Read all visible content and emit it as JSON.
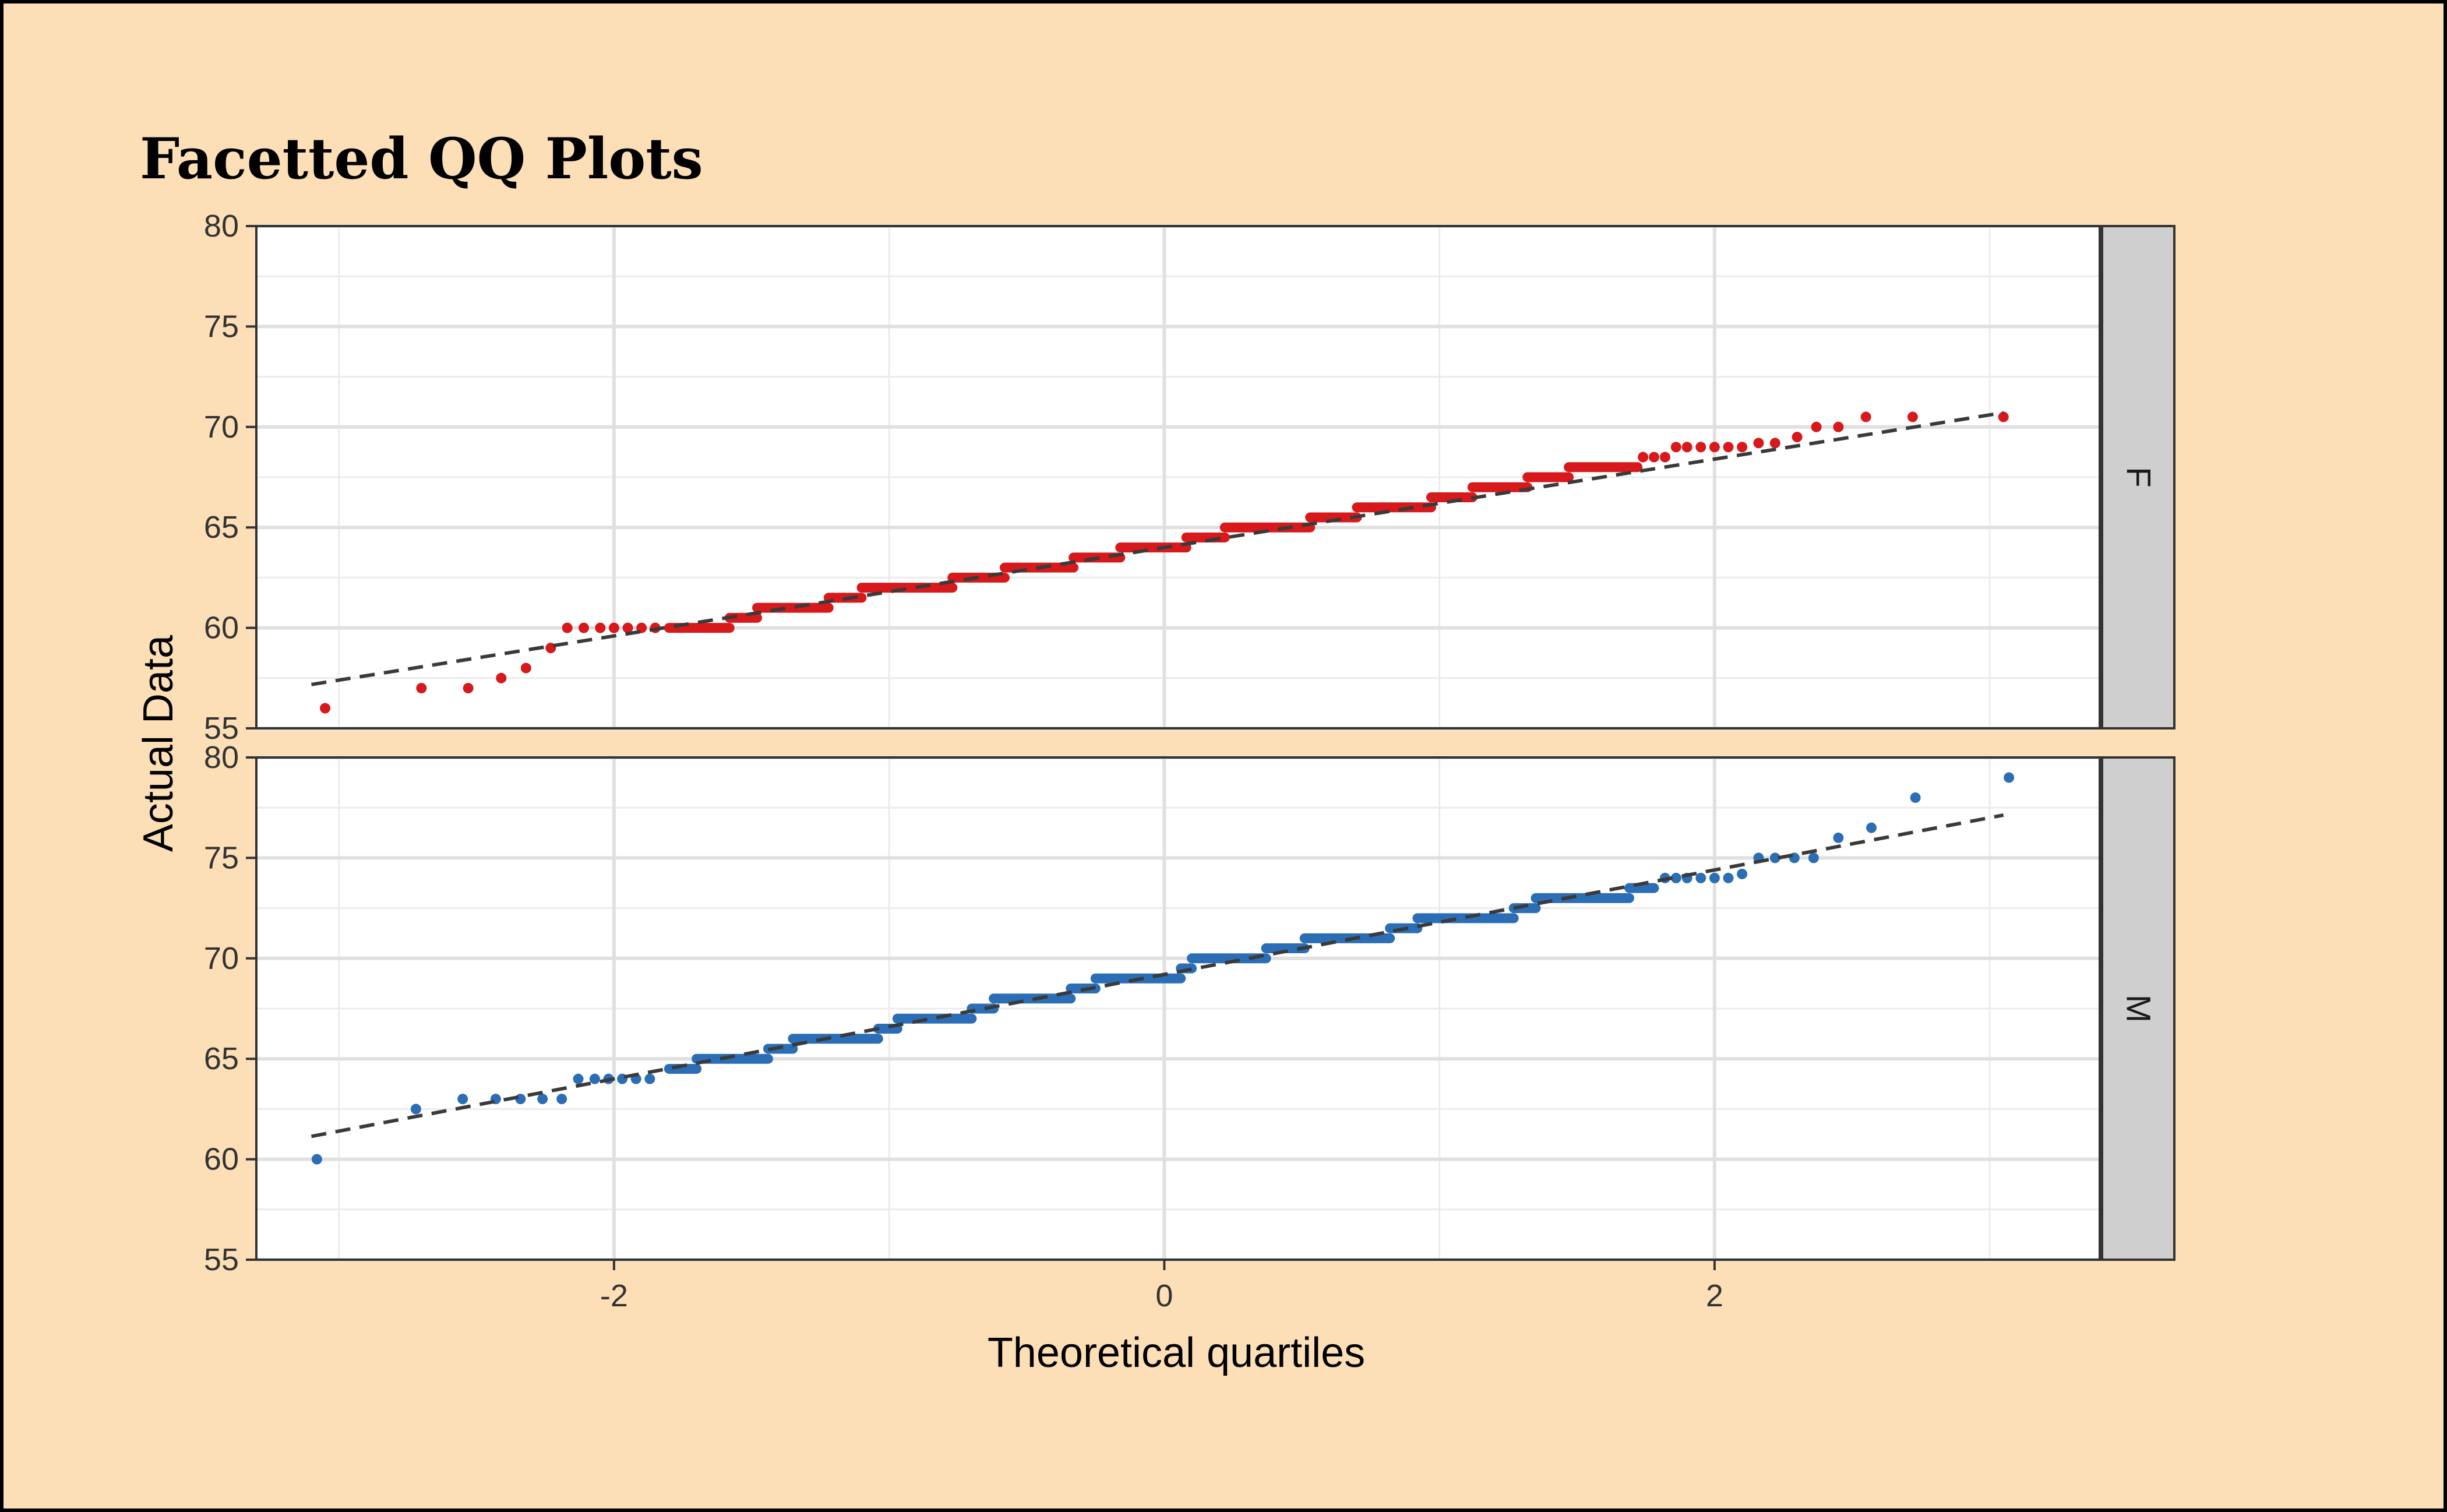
{
  "chart_data": {
    "type": "scatter",
    "title": "Facetted QQ Plots",
    "xlabel": "Theoretical quartiles",
    "ylabel": "Actual Data",
    "xlim": [
      -3.3,
      3.4
    ],
    "ylim": [
      55,
      80
    ],
    "x_ticks": [
      -2,
      0,
      2
    ],
    "x_tick_labels": [
      "-2",
      "0",
      "2"
    ],
    "y_ticks": [
      55,
      60,
      65,
      70,
      75,
      80
    ],
    "y_tick_labels": [
      "55",
      "60",
      "65",
      "70",
      "75",
      "80"
    ],
    "grid": true,
    "legend": "none",
    "reference_line_style": "dashed",
    "facets": [
      {
        "label": "F",
        "color": "#d7191c",
        "reference_line": {
          "intercept": 64.0,
          "slope": 2.2
        },
        "steps": [
          {
            "x0": -1.8,
            "x1": -1.58,
            "y": 60.0
          },
          {
            "x0": -1.58,
            "x1": -1.48,
            "y": 60.5
          },
          {
            "x0": -1.48,
            "x1": -1.22,
            "y": 61.0
          },
          {
            "x0": -1.22,
            "x1": -1.1,
            "y": 61.5
          },
          {
            "x0": -1.1,
            "x1": -0.77,
            "y": 62.0
          },
          {
            "x0": -0.77,
            "x1": -0.58,
            "y": 62.5
          },
          {
            "x0": -0.58,
            "x1": -0.33,
            "y": 63.0
          },
          {
            "x0": -0.33,
            "x1": -0.16,
            "y": 63.5
          },
          {
            "x0": -0.16,
            "x1": 0.08,
            "y": 64.0
          },
          {
            "x0": 0.08,
            "x1": 0.22,
            "y": 64.5
          },
          {
            "x0": 0.22,
            "x1": 0.53,
            "y": 65.0
          },
          {
            "x0": 0.53,
            "x1": 0.7,
            "y": 65.5
          },
          {
            "x0": 0.7,
            "x1": 0.97,
            "y": 66.0
          },
          {
            "x0": 0.97,
            "x1": 1.12,
            "y": 66.5
          },
          {
            "x0": 1.12,
            "x1": 1.32,
            "y": 67.0
          },
          {
            "x0": 1.32,
            "x1": 1.47,
            "y": 67.5
          },
          {
            "x0": 1.47,
            "x1": 1.72,
            "y": 68.0
          }
        ],
        "points": [
          {
            "x": -3.05,
            "y": 56.0
          },
          {
            "x": -2.7,
            "y": 57.0
          },
          {
            "x": -2.53,
            "y": 57.0
          },
          {
            "x": -2.41,
            "y": 57.5
          },
          {
            "x": -2.32,
            "y": 58.0
          },
          {
            "x": -2.23,
            "y": 59.0
          },
          {
            "x": -2.17,
            "y": 60.0
          },
          {
            "x": -2.11,
            "y": 60.0
          },
          {
            "x": -2.05,
            "y": 60.0
          },
          {
            "x": -2.0,
            "y": 60.0
          },
          {
            "x": -1.95,
            "y": 60.0
          },
          {
            "x": -1.9,
            "y": 60.0
          },
          {
            "x": -1.85,
            "y": 60.0
          },
          {
            "x": 1.74,
            "y": 68.5
          },
          {
            "x": 1.78,
            "y": 68.5
          },
          {
            "x": 1.82,
            "y": 68.5
          },
          {
            "x": 1.86,
            "y": 69.0
          },
          {
            "x": 1.9,
            "y": 69.0
          },
          {
            "x": 1.95,
            "y": 69.0
          },
          {
            "x": 2.0,
            "y": 69.0
          },
          {
            "x": 2.05,
            "y": 69.0
          },
          {
            "x": 2.1,
            "y": 69.0
          },
          {
            "x": 2.16,
            "y": 69.2
          },
          {
            "x": 2.22,
            "y": 69.2
          },
          {
            "x": 2.3,
            "y": 69.5
          },
          {
            "x": 2.37,
            "y": 70.0
          },
          {
            "x": 2.45,
            "y": 70.0
          },
          {
            "x": 2.55,
            "y": 70.5
          },
          {
            "x": 2.72,
            "y": 70.5
          },
          {
            "x": 3.05,
            "y": 70.5
          }
        ]
      },
      {
        "label": "M",
        "color": "#2c6eb5",
        "reference_line": {
          "intercept": 69.2,
          "slope": 2.6
        },
        "steps": [
          {
            "x0": -1.8,
            "x1": -1.7,
            "y": 64.5
          },
          {
            "x0": -1.7,
            "x1": -1.44,
            "y": 65.0
          },
          {
            "x0": -1.44,
            "x1": -1.35,
            "y": 65.5
          },
          {
            "x0": -1.35,
            "x1": -1.04,
            "y": 66.0
          },
          {
            "x0": -1.04,
            "x1": -0.97,
            "y": 66.5
          },
          {
            "x0": -0.97,
            "x1": -0.7,
            "y": 67.0
          },
          {
            "x0": -0.7,
            "x1": -0.62,
            "y": 67.5
          },
          {
            "x0": -0.62,
            "x1": -0.34,
            "y": 68.0
          },
          {
            "x0": -0.34,
            "x1": -0.25,
            "y": 68.5
          },
          {
            "x0": -0.25,
            "x1": 0.06,
            "y": 69.0
          },
          {
            "x0": 0.06,
            "x1": 0.1,
            "y": 69.5
          },
          {
            "x0": 0.1,
            "x1": 0.37,
            "y": 70.0
          },
          {
            "x0": 0.37,
            "x1": 0.51,
            "y": 70.5
          },
          {
            "x0": 0.51,
            "x1": 0.82,
            "y": 71.0
          },
          {
            "x0": 0.82,
            "x1": 0.92,
            "y": 71.5
          },
          {
            "x0": 0.92,
            "x1": 1.27,
            "y": 72.0
          },
          {
            "x0": 1.27,
            "x1": 1.35,
            "y": 72.5
          },
          {
            "x0": 1.35,
            "x1": 1.69,
            "y": 73.0
          },
          {
            "x0": 1.69,
            "x1": 1.78,
            "y": 73.5
          }
        ],
        "points": [
          {
            "x": -3.08,
            "y": 60.0
          },
          {
            "x": -2.72,
            "y": 62.5
          },
          {
            "x": -2.55,
            "y": 63.0
          },
          {
            "x": -2.43,
            "y": 63.0
          },
          {
            "x": -2.34,
            "y": 63.0
          },
          {
            "x": -2.26,
            "y": 63.0
          },
          {
            "x": -2.19,
            "y": 63.0
          },
          {
            "x": -2.13,
            "y": 64.0
          },
          {
            "x": -2.07,
            "y": 64.0
          },
          {
            "x": -2.02,
            "y": 64.0
          },
          {
            "x": -1.97,
            "y": 64.0
          },
          {
            "x": -1.92,
            "y": 64.0
          },
          {
            "x": -1.87,
            "y": 64.0
          },
          {
            "x": 1.82,
            "y": 74.0
          },
          {
            "x": 1.86,
            "y": 74.0
          },
          {
            "x": 1.9,
            "y": 74.0
          },
          {
            "x": 1.95,
            "y": 74.0
          },
          {
            "x": 2.0,
            "y": 74.0
          },
          {
            "x": 2.05,
            "y": 74.0
          },
          {
            "x": 2.1,
            "y": 74.2
          },
          {
            "x": 2.16,
            "y": 75.0
          },
          {
            "x": 2.22,
            "y": 75.0
          },
          {
            "x": 2.29,
            "y": 75.0
          },
          {
            "x": 2.36,
            "y": 75.0
          },
          {
            "x": 2.45,
            "y": 76.0
          },
          {
            "x": 2.57,
            "y": 76.5
          },
          {
            "x": 2.73,
            "y": 78.0
          },
          {
            "x": 3.07,
            "y": 79.0
          }
        ]
      }
    ]
  }
}
